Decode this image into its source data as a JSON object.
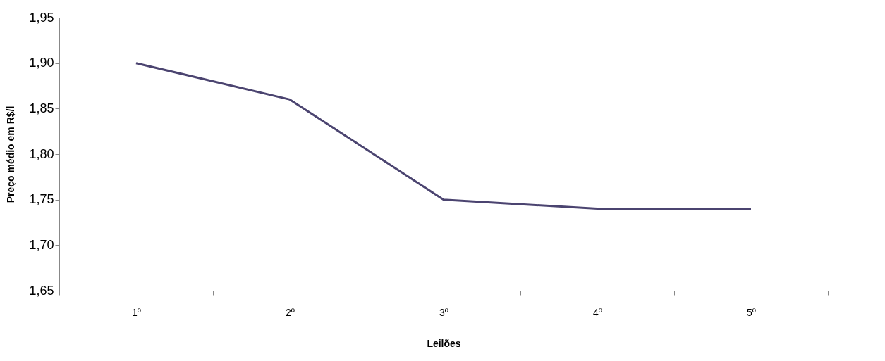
{
  "chart_data": {
    "type": "line",
    "xlabel": "Leilões",
    "ylabel": "Preço médio em R$/l",
    "categories": [
      "1º",
      "2º",
      "3º",
      "4º",
      "5º"
    ],
    "series": [
      {
        "color": "#4b4470",
        "values": [
          1.9,
          1.86,
          1.75,
          1.74,
          1.74
        ]
      }
    ],
    "ylim": [
      1.65,
      1.95
    ],
    "yticks": [
      {
        "value": 1.65,
        "label": "1,65"
      },
      {
        "value": 1.7,
        "label": "1,70"
      },
      {
        "value": 1.75,
        "label": "1,75"
      },
      {
        "value": 1.8,
        "label": "1,80"
      },
      {
        "value": 1.85,
        "label": "1,85"
      },
      {
        "value": 1.9,
        "label": "1,90"
      },
      {
        "value": 1.95,
        "label": "1,95"
      }
    ],
    "grid": false,
    "legend": false,
    "marker": "none",
    "line_style": "solid"
  }
}
